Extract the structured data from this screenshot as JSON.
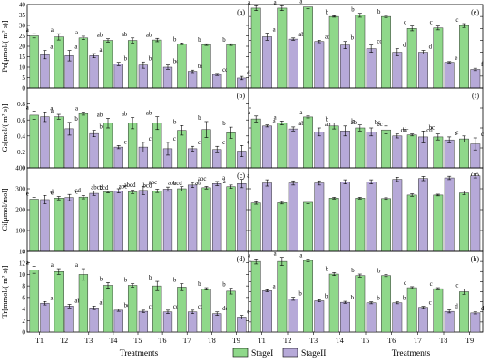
{
  "chart_data": {
    "type": "bar",
    "categories": [
      "T1",
      "T2",
      "T3",
      "T4",
      "T5",
      "T6",
      "T7",
      "T8",
      "T9"
    ],
    "xlabel": "Treatments",
    "legend": {
      "placement": "bottom",
      "entries": [
        "StageI",
        "StageII"
      ]
    },
    "colors": {
      "StageI": "#8fd88a",
      "StageII": "#b6a9d8"
    },
    "rows": [
      {
        "ylabel": "Pn[μmol/( m² s)]"
      },
      {
        "ylabel": "Gs[mol/( m² s)]"
      },
      {
        "ylabel": "Ci[μmol/mol]"
      },
      {
        "ylabel": "Tr[mmol/( m² s)]"
      }
    ],
    "panels": [
      {
        "id": "(a)",
        "row": 0,
        "col": 0,
        "ylim": [
          0,
          40
        ],
        "yticks": [
          0,
          5,
          10,
          15,
          20,
          25,
          30,
          35,
          40
        ],
        "series": [
          {
            "name": "StageI",
            "values": [
              25,
              24.5,
              24,
              22.8,
              22.8,
              23,
              21.2,
              20.8,
              20.8
            ],
            "errors": [
              1,
              1.5,
              0.8,
              0.8,
              1.2,
              0.8,
              0.4,
              0.4,
              0.4
            ],
            "letters": [
              "a",
              "a",
              "a",
              "ab",
              "ab",
              "ab",
              "b",
              "b",
              "b"
            ]
          },
          {
            "name": "StageII",
            "values": [
              16,
              15.5,
              15.5,
              11.5,
              11,
              10,
              8,
              6.5,
              4.8
            ],
            "errors": [
              2,
              2.5,
              1,
              0.8,
              1.5,
              1,
              0.6,
              0.5,
              0.8
            ],
            "letters": [
              "a",
              "a",
              "a",
              "b",
              "b",
              "bc",
              "bc",
              "cd",
              "d"
            ]
          }
        ]
      },
      {
        "id": "(e)",
        "row": 0,
        "col": 1,
        "ylim": [
          0,
          35
        ],
        "yticks": [
          0,
          5,
          10,
          15,
          20,
          25,
          30,
          35
        ],
        "series": [
          {
            "name": "StageI",
            "values": [
              33.5,
              33.5,
              34,
              30,
              30.5,
              30,
              25,
              25.2,
              26.2
            ],
            "errors": [
              1,
              1,
              0.8,
              0.3,
              0.8,
              0.4,
              1,
              0.8,
              0.8
            ],
            "letters": [
              "a",
              "a",
              "a",
              "b",
              "b",
              "b",
              "c",
              "c",
              "c"
            ]
          },
          {
            "name": "StageII",
            "values": [
              21.5,
              20.5,
              19.5,
              18,
              16.5,
              15,
              15,
              10.8,
              7.8
            ],
            "errors": [
              1.5,
              0.5,
              0.5,
              1.5,
              1.5,
              1.5,
              0.8,
              0.3,
              0.5
            ],
            "letters": [
              "a",
              "ab",
              "ab",
              "b",
              "cd",
              "d",
              "d",
              "e",
              "f"
            ]
          }
        ]
      },
      {
        "id": "(b)",
        "row": 1,
        "col": 0,
        "ylim": [
          0,
          1.0
        ],
        "yticks": [
          0,
          0.2,
          0.4,
          0.6,
          0.8,
          1.0
        ],
        "series": [
          {
            "name": "StageI",
            "values": [
              0.66,
              0.64,
              0.68,
              0.56,
              0.56,
              0.56,
              0.47,
              0.48,
              0.44
            ],
            "errors": [
              0.05,
              0.03,
              0.02,
              0.06,
              0.07,
              0.08,
              0.06,
              0.1,
              0.07
            ],
            "letters": [
              "a",
              "a",
              "a",
              "ab",
              "ab",
              "ab",
              "b",
              "b",
              "b"
            ]
          },
          {
            "name": "StageII",
            "values": [
              0.64,
              0.49,
              0.43,
              0.26,
              0.26,
              0.24,
              0.24,
              0.23,
              0.21
            ],
            "errors": [
              0.06,
              0.08,
              0.04,
              0.02,
              0.06,
              0.08,
              0.03,
              0.04,
              0.07
            ],
            "letters": [
              "a",
              "b",
              "b",
              "c",
              "c",
              "c",
              "c",
              "c",
              "c"
            ]
          }
        ]
      },
      {
        "id": "(f)",
        "row": 1,
        "col": 1,
        "ylim": [
          0,
          0.8
        ],
        "yticks": [
          0,
          0.2,
          0.4,
          0.6,
          0.8
        ],
        "series": [
          {
            "name": "StageI",
            "values": [
              0.49,
              0.45,
              0.51,
              0.42,
              0.4,
              0.38,
              0.33,
              0.31,
              0.29
            ],
            "errors": [
              0.03,
              0.02,
              0.01,
              0.03,
              0.03,
              0.04,
              0.01,
              0.03,
              0.03
            ],
            "letters": [
              "a",
              "a",
              "a",
              "b",
              "b",
              "bc",
              "cd",
              "cd",
              "c"
            ]
          },
          {
            "name": "StageII",
            "values": [
              0.42,
              0.39,
              0.36,
              0.37,
              0.36,
              0.32,
              0.31,
              0.28,
              0.24
            ],
            "errors": [
              0.01,
              0.02,
              0.04,
              0.05,
              0.04,
              0.02,
              0.06,
              0.03,
              0.06
            ],
            "letters": [
              "a",
              "ab",
              "ab",
              "ab",
              "bc",
              "bc",
              "bc",
              "c",
              "c"
            ]
          }
        ]
      },
      {
        "id": "(c)",
        "row": 2,
        "col": 0,
        "ylim": [
          0,
          400
        ],
        "yticks": [
          0,
          100,
          200,
          300,
          400
        ],
        "series": [
          {
            "name": "StageI",
            "values": [
              250,
              255,
              260,
              285,
              285,
              290,
              300,
              305,
              310
            ],
            "errors": [
              8,
              8,
              8,
              5,
              8,
              8,
              10,
              6,
              8
            ],
            "letters": [
              "e",
              "e",
              "e",
              "abcd",
              "abc",
              "bcd",
              "abc",
              "ab",
              "a"
            ]
          },
          {
            "name": "StageII",
            "values": [
              248,
              258,
              278,
              290,
              292,
              298,
              318,
              325,
              325
            ],
            "errors": [
              20,
              15,
              10,
              10,
              20,
              10,
              12,
              10,
              20
            ],
            "letters": [
              "d",
              "cd",
              "bcd",
              "abcd",
              "abc",
              "bcd",
              "abc",
              "a",
              "a"
            ]
          }
        ]
      },
      {
        "id": "(g)",
        "row": 2,
        "col": 1,
        "ylim": [
          0,
          400
        ],
        "yticks": [
          0,
          100,
          200,
          300,
          400
        ],
        "series": [
          {
            "name": "StageI",
            "values": [
              232,
              233,
              235,
              255,
              255,
              253,
              270,
              270,
              280
            ],
            "errors": [
              6,
              6,
              6,
              4,
              4,
              4,
              6,
              4,
              8
            ],
            "letters": [
              "",
              "",
              "",
              "",
              "",
              "",
              "",
              "",
              ""
            ]
          },
          {
            "name": "StageII",
            "values": [
              328,
              328,
              328,
              333,
              333,
              345,
              349,
              352,
              362
            ],
            "errors": [
              15,
              10,
              10,
              10,
              10,
              10,
              10,
              8,
              10
            ],
            "letters": [
              "",
              "",
              "",
              "",
              "",
              "",
              "",
              "",
              ""
            ]
          }
        ]
      },
      {
        "id": "(d)",
        "row": 3,
        "col": 0,
        "ylim": [
          0,
          14
        ],
        "yticks": [
          0,
          2,
          4,
          6,
          8,
          10,
          12,
          14
        ],
        "series": [
          {
            "name": "StageI",
            "values": [
              10.8,
              10.5,
              10,
              8.1,
              8.1,
              8,
              7.8,
              7.5,
              7.1
            ],
            "errors": [
              0.6,
              0.5,
              1,
              0.5,
              0.3,
              0.8,
              0.6,
              0.2,
              0.5
            ],
            "letters": [
              "a",
              "a",
              "a",
              "b",
              "b",
              "b",
              "b",
              "b",
              "b"
            ]
          },
          {
            "name": "StageII",
            "values": [
              5,
              4.5,
              4.2,
              3.8,
              3.6,
              3.5,
              3.5,
              3.2,
              2.6
            ],
            "errors": [
              0.3,
              0.3,
              0.3,
              0.2,
              0.2,
              0.3,
              0.3,
              0.3,
              0.3
            ],
            "letters": [
              "a",
              "ab",
              "abc",
              "bc",
              "cd",
              "cd",
              "cd",
              "de",
              "e"
            ]
          }
        ]
      },
      {
        "id": "(h)",
        "row": 3,
        "col": 1,
        "ylim": [
          0,
          16
        ],
        "yticks": [
          0,
          2,
          4,
          6,
          8,
          10,
          12,
          14,
          16
        ],
        "series": [
          {
            "name": "StageI",
            "values": [
              14,
              14,
              14.2,
              11.5,
              11.2,
              11.2,
              8.8,
              8.6,
              8
            ],
            "errors": [
              0.5,
              0.8,
              0.3,
              0.3,
              0.3,
              0.2,
              0.2,
              0.2,
              0.5
            ],
            "letters": [
              "a",
              "a",
              "a",
              "b",
              "b",
              "b",
              "c",
              "c",
              "c"
            ]
          },
          {
            "name": "StageII",
            "values": [
              8.2,
              6.6,
              6.2,
              5.9,
              5.8,
              5.8,
              4.9,
              4.1,
              3.8
            ],
            "errors": [
              0.2,
              0.3,
              0.2,
              0.2,
              0.2,
              0.2,
              0.2,
              0.3,
              0.2
            ],
            "letters": [
              "a",
              "b",
              "b",
              "b",
              "b",
              "b",
              "c",
              "d",
              "d"
            ]
          }
        ]
      }
    ]
  }
}
